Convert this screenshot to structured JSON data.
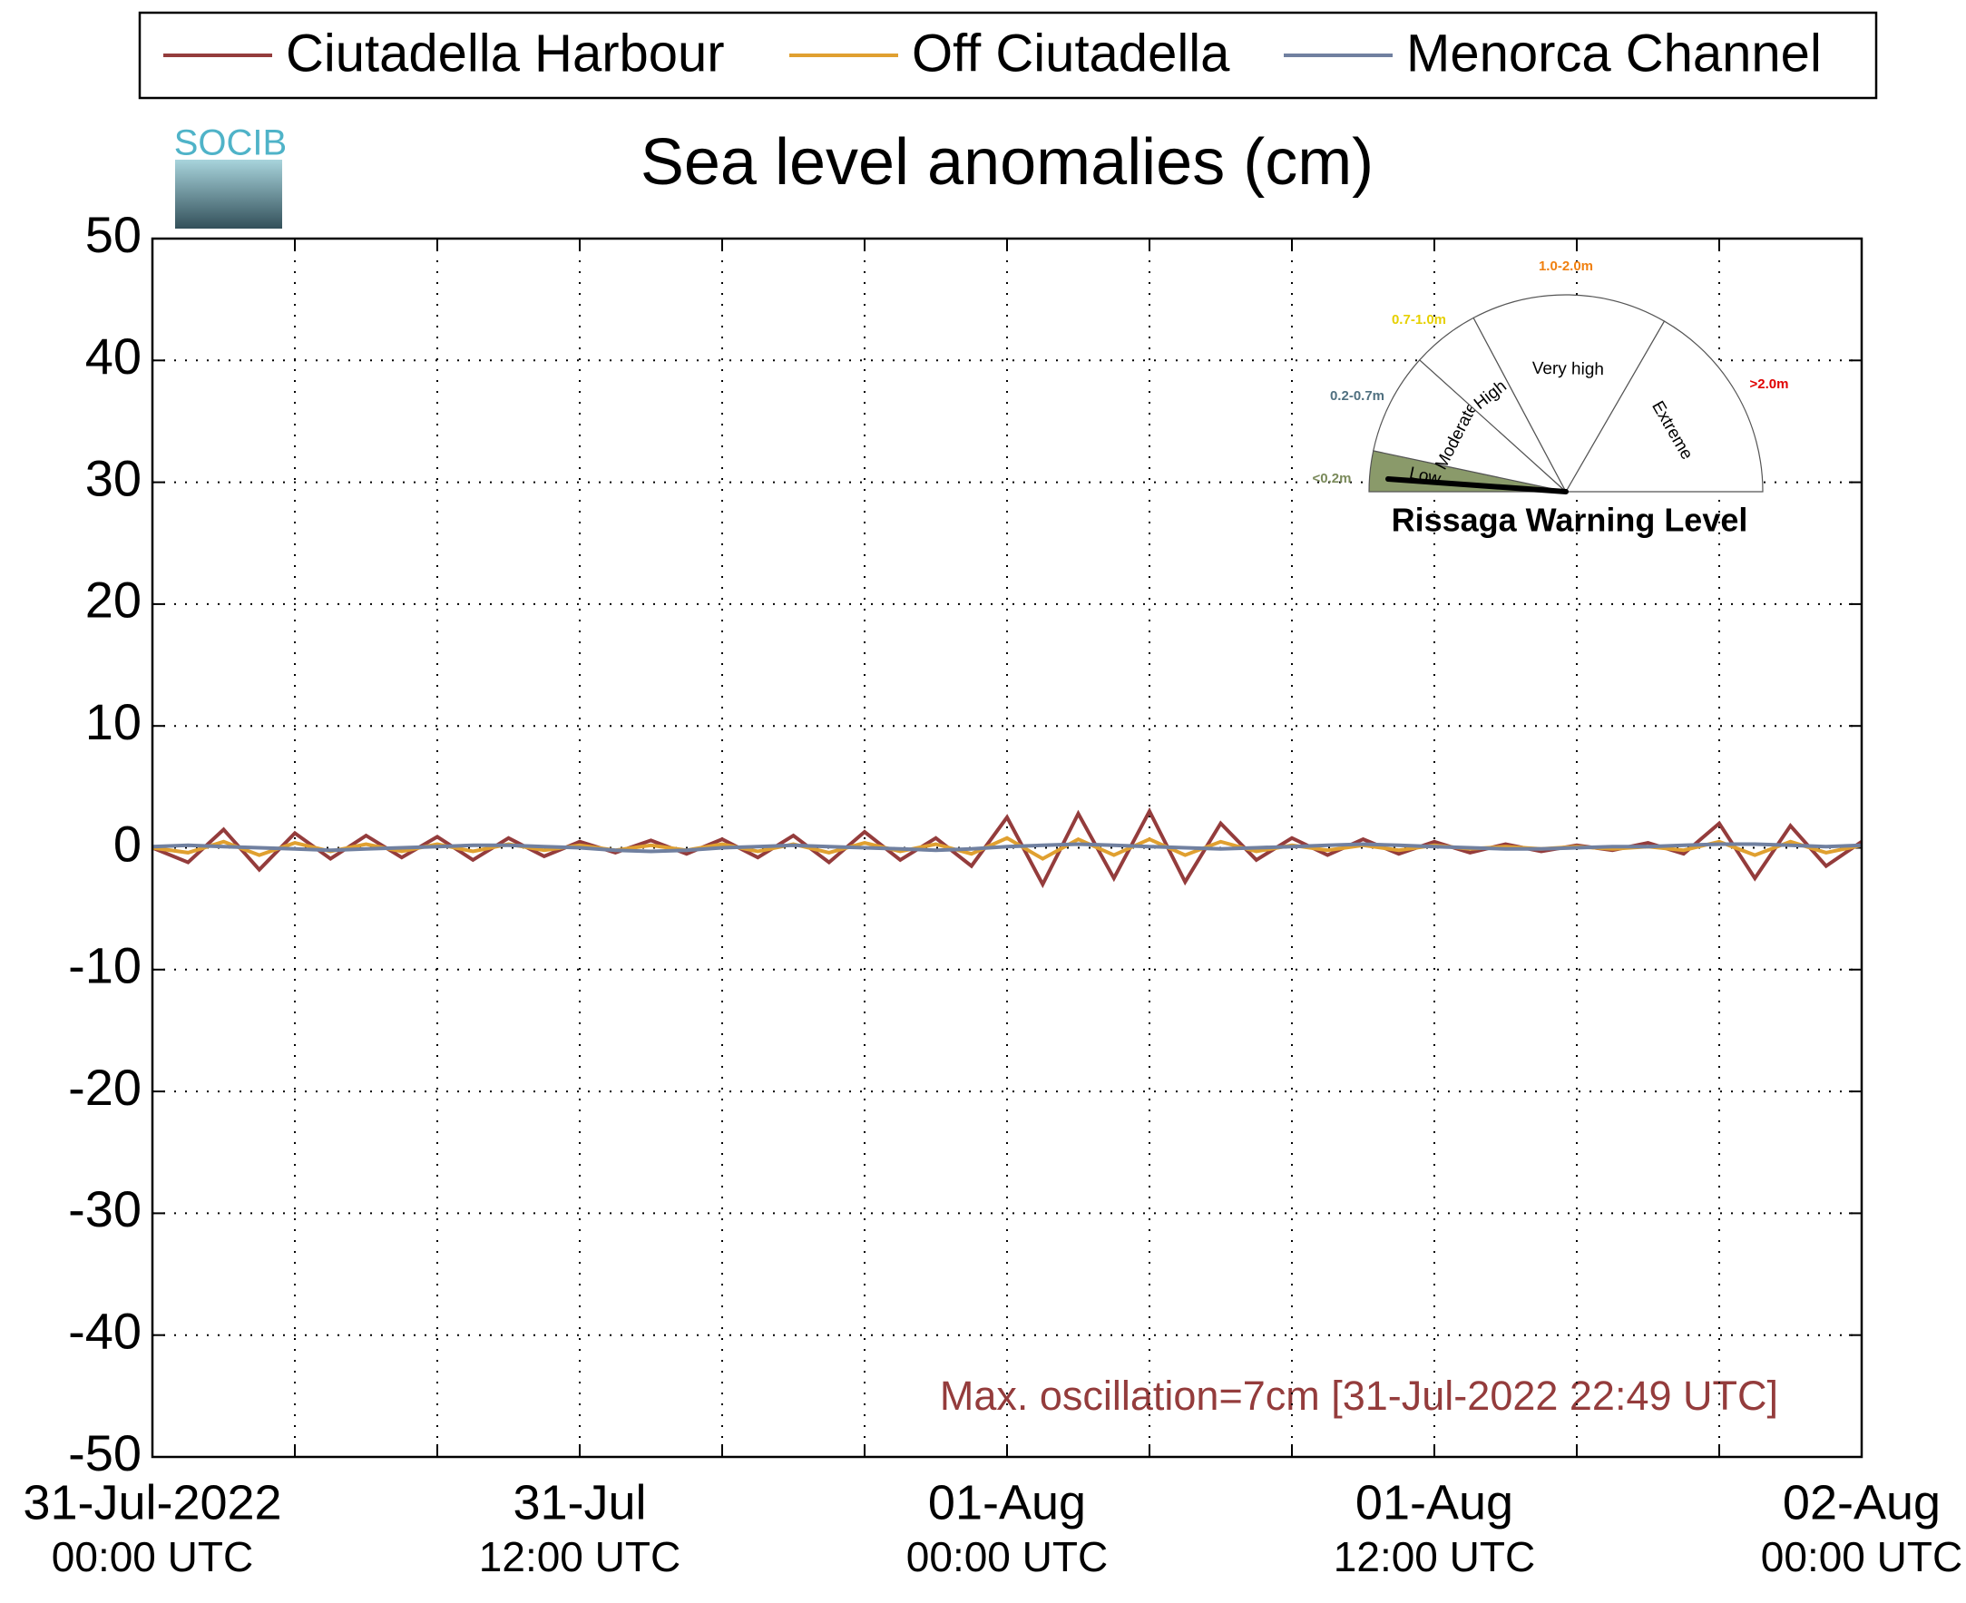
{
  "chart_data": {
    "type": "line",
    "title": "Sea level anomalies (cm)",
    "logo": "SOCIB",
    "annotation": "Max. oscillation=7cm [31-Jul-2022 22:49 UTC]",
    "x": [
      0,
      1,
      2,
      3,
      4,
      5,
      6,
      7,
      8,
      9,
      10,
      11,
      12,
      13,
      14,
      15,
      16,
      17,
      18,
      19,
      20,
      21,
      22,
      23,
      24,
      25,
      26,
      27,
      28,
      29,
      30,
      31,
      32,
      33,
      34,
      35,
      36,
      37,
      38,
      39,
      40,
      41,
      42,
      43,
      44,
      45,
      46,
      47,
      48
    ],
    "series": [
      {
        "name": "Ciutadella Harbour",
        "color": "#943c3c",
        "values": [
          0,
          -1.2,
          1.5,
          -1.8,
          1.2,
          -0.9,
          1.0,
          -0.8,
          0.9,
          -1.0,
          0.8,
          -0.7,
          0.5,
          -0.4,
          0.6,
          -0.5,
          0.7,
          -0.8,
          1.0,
          -1.2,
          1.3,
          -1.0,
          0.8,
          -1.5,
          2.5,
          -3.0,
          2.8,
          -2.5,
          3.0,
          -2.8,
          2.0,
          -1.0,
          0.8,
          -0.6,
          0.7,
          -0.5,
          0.5,
          -0.4,
          0.3,
          -0.3,
          0.2,
          -0.2,
          0.4,
          -0.5,
          2.0,
          -2.5,
          1.8,
          -1.5,
          0.5
        ]
      },
      {
        "name": "Off Ciutadella",
        "color": "#e0a030",
        "values": [
          0,
          -0.4,
          0.5,
          -0.6,
          0.4,
          -0.3,
          0.3,
          -0.3,
          0.3,
          -0.3,
          0.3,
          -0.2,
          0.2,
          -0.2,
          0.2,
          -0.2,
          0.3,
          -0.3,
          0.3,
          -0.4,
          0.4,
          -0.3,
          0.3,
          -0.5,
          0.8,
          -0.9,
          0.7,
          -0.6,
          0.7,
          -0.6,
          0.5,
          -0.3,
          0.2,
          -0.2,
          0.2,
          -0.2,
          0.2,
          -0.1,
          0.1,
          -0.1,
          0.1,
          -0.1,
          0.1,
          -0.2,
          0.5,
          -0.6,
          0.5,
          -0.4,
          0.2
        ]
      },
      {
        "name": "Menorca Channel",
        "color": "#7080a0",
        "values": [
          0.1,
          0.2,
          0.1,
          0,
          -0.1,
          -0.2,
          -0.1,
          0,
          0.1,
          0.2,
          0.2,
          0.1,
          0,
          -0.2,
          -0.3,
          -0.2,
          0,
          0.1,
          0.2,
          0.1,
          0,
          -0.1,
          -0.2,
          -0.1,
          0.1,
          0.2,
          0.3,
          0.2,
          0.1,
          0,
          -0.1,
          0,
          0.1,
          0.2,
          0.3,
          0.2,
          0.1,
          0,
          -0.1,
          -0.1,
          0,
          0.1,
          0.1,
          0.2,
          0.3,
          0.3,
          0.2,
          0.1,
          0.2
        ]
      }
    ],
    "xlim": [
      0,
      48
    ],
    "xticks": [
      {
        "value": 0,
        "label": [
          "31-Jul-2022",
          "00:00 UTC"
        ]
      },
      {
        "value": 12,
        "label": [
          "31-Jul",
          "12:00 UTC"
        ]
      },
      {
        "value": 24,
        "label": [
          "01-Aug",
          "00:00 UTC"
        ]
      },
      {
        "value": 36,
        "label": [
          "01-Aug",
          "12:00 UTC"
        ]
      },
      {
        "value": 48,
        "label": [
          "02-Aug",
          "00:00 UTC"
        ]
      }
    ],
    "xminor_ticks": [
      4,
      8,
      16,
      20,
      28,
      32,
      40,
      44
    ],
    "ylim": [
      -50,
      50
    ],
    "yticks": [
      -50,
      -40,
      -30,
      -20,
      -10,
      0,
      10,
      20,
      30,
      40,
      50
    ],
    "grid": true,
    "legend": "top",
    "gauge": {
      "title": "Rissaga Warning Level",
      "levels": [
        {
          "name": "Low",
          "range": "<0.2m",
          "color": "#7a8a5a"
        },
        {
          "name": "Moderate",
          "range": "0.2-0.7m",
          "color": "#507080"
        },
        {
          "name": "High",
          "range": "0.7-1.0m",
          "color": "#e6d000"
        },
        {
          "name": "Very high",
          "range": "1.0-2.0m",
          "color": "#f08010"
        },
        {
          "name": "Extreme",
          "range": ">2.0m",
          "color": "#e00000"
        }
      ],
      "active": "Low"
    }
  }
}
